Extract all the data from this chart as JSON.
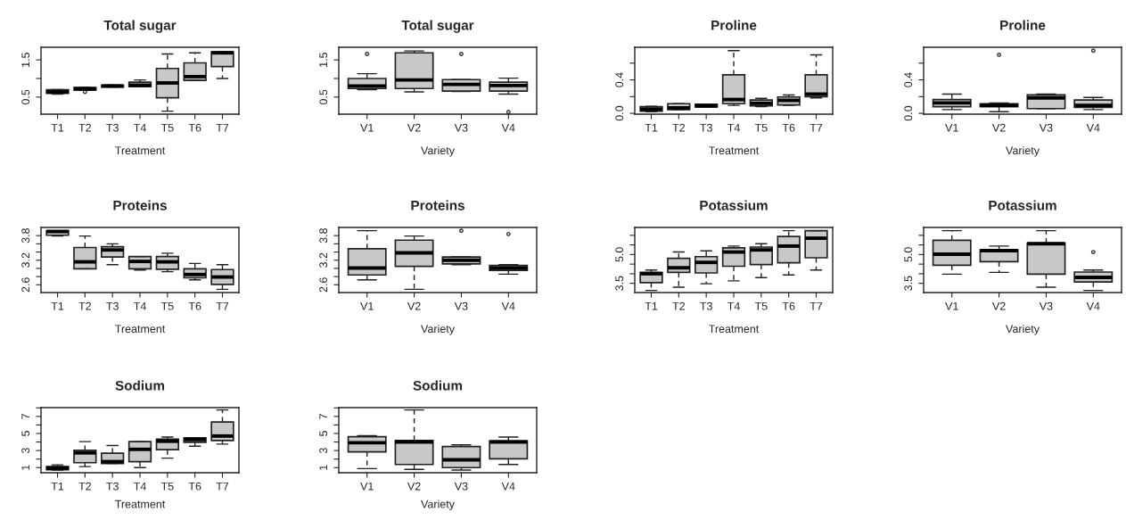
{
  "chart_data": [
    {
      "type": "box",
      "title": "Total sugar",
      "xlabel": "Treatment",
      "categories": [
        "T1",
        "T2",
        "T3",
        "T4",
        "T5",
        "T6",
        "T7"
      ],
      "ylim": [
        0.04,
        1.84
      ],
      "yticks": [
        0.5,
        {
          "value": 1.0,
          "label": null
        },
        1.5
      ],
      "boxes": [
        {
          "low": 0.58,
          "q1": 0.6,
          "median": 0.64,
          "q3": 0.7,
          "high": 0.7
        },
        {
          "low": 0.68,
          "q1": 0.69,
          "median": 0.72,
          "q3": 0.76,
          "high": 0.76,
          "outliers": [
            0.64
          ]
        },
        {
          "low": 0.77,
          "q1": 0.77,
          "median": 0.8,
          "q3": 0.82,
          "high": 0.82
        },
        {
          "low": 0.78,
          "q1": 0.78,
          "median": 0.82,
          "q3": 0.9,
          "high": 0.96
        },
        {
          "low": 0.12,
          "q1": 0.48,
          "median": 0.88,
          "q3": 1.27,
          "high": 1.66
        },
        {
          "low": 0.95,
          "q1": 0.95,
          "median": 1.05,
          "q3": 1.42,
          "high": 1.69
        },
        {
          "low": 1.0,
          "q1": 1.32,
          "median": 1.69,
          "q3": 1.72,
          "high": 1.73
        }
      ]
    },
    {
      "type": "box",
      "title": "Total sugar",
      "xlabel": "Variety",
      "categories": [
        "V1",
        "V2",
        "V3",
        "V4"
      ],
      "ylim": [
        0.04,
        1.84
      ],
      "yticks": [
        0.5,
        {
          "value": 1.0,
          "label": null
        },
        1.5
      ],
      "boxes": [
        {
          "low": 0.7,
          "q1": 0.73,
          "median": 0.8,
          "q3": 1.0,
          "high": 1.13,
          "outliers": [
            1.66
          ]
        },
        {
          "low": 0.64,
          "q1": 0.73,
          "median": 0.96,
          "q3": 1.69,
          "high": 1.74
        },
        {
          "low": 0.65,
          "q1": 0.66,
          "median": 0.84,
          "q3": 0.97,
          "high": 0.97,
          "outliers": [
            1.66
          ]
        },
        {
          "low": 0.58,
          "q1": 0.66,
          "median": 0.81,
          "q3": 0.9,
          "high": 1.01,
          "outliers": [
            0.1
          ]
        }
      ]
    },
    {
      "type": "box",
      "title": "Proline",
      "xlabel": "Treatment",
      "categories": [
        "T1",
        "T2",
        "T3",
        "T4",
        "T5",
        "T6",
        "T7"
      ],
      "ylim": [
        -0.01,
        0.79
      ],
      "yticks": [
        {
          "value": 0.0,
          "label": "0.0"
        },
        {
          "value": 0.2,
          "label": null
        },
        0.4,
        {
          "value": 0.6,
          "label": null
        }
      ],
      "boxes": [
        {
          "low": 0.02,
          "q1": 0.025,
          "median": 0.05,
          "q3": 0.08,
          "high": 0.085
        },
        {
          "low": 0.045,
          "q1": 0.045,
          "median": 0.065,
          "q3": 0.115,
          "high": 0.115
        },
        {
          "low": 0.075,
          "q1": 0.075,
          "median": 0.09,
          "q3": 0.11,
          "high": 0.11
        },
        {
          "low": 0.095,
          "q1": 0.115,
          "median": 0.165,
          "q3": 0.46,
          "high": 0.75
        },
        {
          "low": 0.08,
          "q1": 0.09,
          "median": 0.12,
          "q3": 0.16,
          "high": 0.18
        },
        {
          "low": 0.095,
          "q1": 0.1,
          "median": 0.155,
          "q3": 0.195,
          "high": 0.22
        },
        {
          "low": 0.185,
          "q1": 0.2,
          "median": 0.23,
          "q3": 0.46,
          "high": 0.7
        }
      ]
    },
    {
      "type": "box",
      "title": "Proline",
      "xlabel": "Variety",
      "categories": [
        "V1",
        "V2",
        "V3",
        "V4"
      ],
      "ylim": [
        -0.01,
        0.79
      ],
      "yticks": [
        {
          "value": 0.0,
          "label": "0.0"
        },
        {
          "value": 0.2,
          "label": null
        },
        0.4,
        {
          "value": 0.6,
          "label": null
        }
      ],
      "boxes": [
        {
          "low": 0.045,
          "q1": 0.08,
          "median": 0.125,
          "q3": 0.165,
          "high": 0.23
        },
        {
          "low": 0.02,
          "q1": 0.08,
          "median": 0.095,
          "q3": 0.115,
          "high": 0.125,
          "outliers": [
            0.7
          ]
        },
        {
          "low": 0.057,
          "q1": 0.057,
          "median": 0.185,
          "q3": 0.22,
          "high": 0.23
        },
        {
          "low": 0.045,
          "q1": 0.07,
          "median": 0.095,
          "q3": 0.16,
          "high": 0.19,
          "outliers": [
            0.75
          ]
        }
      ]
    },
    {
      "type": "box",
      "title": "Proteins",
      "xlabel": "Treatment",
      "categories": [
        "T1",
        "T2",
        "T3",
        "T4",
        "T5",
        "T6",
        "T7"
      ],
      "ylim": [
        2.41,
        4.0
      ],
      "yticks": [
        2.6,
        {
          "value": 2.8,
          "label": null
        },
        {
          "value": 3.0,
          "label": null
        },
        3.2,
        {
          "value": 3.4,
          "label": null
        },
        {
          "value": 3.6,
          "label": null
        },
        3.8
      ],
      "boxes": [
        {
          "low": 3.79,
          "q1": 3.81,
          "median": 3.9,
          "q3": 3.92,
          "high": 3.92
        },
        {
          "low": 2.99,
          "q1": 2.99,
          "median": 3.16,
          "q3": 3.51,
          "high": 3.79
        },
        {
          "low": 3.09,
          "q1": 3.28,
          "median": 3.45,
          "q3": 3.53,
          "high": 3.6
        },
        {
          "low": 2.96,
          "q1": 2.99,
          "median": 3.17,
          "q3": 3.29,
          "high": 3.29
        },
        {
          "low": 2.92,
          "q1": 2.98,
          "median": 3.16,
          "q3": 3.29,
          "high": 3.37
        },
        {
          "low": 2.72,
          "q1": 2.77,
          "median": 2.85,
          "q3": 2.99,
          "high": 3.12
        },
        {
          "low": 2.49,
          "q1": 2.61,
          "median": 2.79,
          "q3": 2.97,
          "high": 3.09
        }
      ]
    },
    {
      "type": "box",
      "title": "Proteins",
      "xlabel": "Variety",
      "categories": [
        "V1",
        "V2",
        "V3",
        "V4"
      ],
      "ylim": [
        2.41,
        4.0
      ],
      "yticks": [
        2.6,
        {
          "value": 2.8,
          "label": null
        },
        {
          "value": 3.0,
          "label": null
        },
        3.2,
        {
          "value": 3.4,
          "label": null
        },
        {
          "value": 3.6,
          "label": null
        },
        3.8
      ],
      "boxes": [
        {
          "low": 2.72,
          "q1": 2.84,
          "median": 3.01,
          "q3": 3.48,
          "high": 3.92
        },
        {
          "low": 2.49,
          "q1": 3.05,
          "median": 3.38,
          "q3": 3.69,
          "high": 3.79
        },
        {
          "low": 3.09,
          "q1": 3.11,
          "median": 3.2,
          "q3": 3.28,
          "high": 3.28,
          "outliers": [
            3.92
          ]
        },
        {
          "low": 2.86,
          "q1": 2.95,
          "median": 3.01,
          "q3": 3.07,
          "high": 3.09,
          "outliers": [
            3.84
          ]
        }
      ]
    },
    {
      "type": "box",
      "title": "Potassium",
      "xlabel": "Treatment",
      "categories": [
        "T1",
        "T2",
        "T3",
        "T4",
        "T5",
        "T6",
        "T7"
      ],
      "ylim": [
        3.02,
        6.41
      ],
      "yticks": [
        3.5,
        {
          "value": 4.0,
          "label": null
        },
        {
          "value": 4.5,
          "label": null
        },
        {
          "value": 5.0,
          "label": "5.0"
        },
        {
          "value": 5.5,
          "label": null
        },
        {
          "value": 6.0,
          "label": null
        }
      ],
      "boxes": [
        {
          "low": 3.13,
          "q1": 3.54,
          "median": 4.0,
          "q3": 4.07,
          "high": 4.19
        },
        {
          "low": 3.3,
          "q1": 4.07,
          "median": 4.31,
          "q3": 4.8,
          "high": 5.13
        },
        {
          "low": 3.48,
          "q1": 4.04,
          "median": 4.59,
          "q3": 4.89,
          "high": 5.19
        },
        {
          "low": 3.63,
          "q1": 4.39,
          "median": 5.13,
          "q3": 5.35,
          "high": 5.44
        },
        {
          "low": 3.8,
          "q1": 4.48,
          "median": 5.24,
          "q3": 5.39,
          "high": 5.56
        },
        {
          "low": 3.94,
          "q1": 4.57,
          "median": 5.44,
          "q3": 5.94,
          "high": 6.24
        },
        {
          "low": 4.19,
          "q1": 4.83,
          "median": 5.85,
          "q3": 6.24,
          "high": 6.24
        }
      ]
    },
    {
      "type": "box",
      "title": "Potassium",
      "xlabel": "Variety",
      "categories": [
        "V1",
        "V2",
        "V3",
        "V4"
      ],
      "ylim": [
        3.02,
        6.41
      ],
      "yticks": [
        3.5,
        {
          "value": 4.0,
          "label": null
        },
        {
          "value": 4.5,
          "label": null
        },
        {
          "value": 5.0,
          "label": "5.0"
        },
        {
          "value": 5.5,
          "label": null
        },
        {
          "value": 6.0,
          "label": null
        }
      ],
      "boxes": [
        {
          "low": 3.98,
          "q1": 4.44,
          "median": 5.02,
          "q3": 5.74,
          "high": 6.24
        },
        {
          "low": 4.07,
          "q1": 4.63,
          "median": 5.2,
          "q3": 5.24,
          "high": 5.44
        },
        {
          "low": 3.3,
          "q1": 3.98,
          "median": 5.56,
          "q3": 5.59,
          "high": 6.24
        },
        {
          "low": 3.13,
          "q1": 3.57,
          "median": 3.81,
          "q3": 4.09,
          "high": 4.19,
          "outliers": [
            5.13
          ]
        }
      ]
    },
    {
      "type": "box",
      "title": "Sodium",
      "xlabel": "Treatment",
      "categories": [
        "T1",
        "T2",
        "T3",
        "T4",
        "T5",
        "T6",
        "T7"
      ],
      "ylim": [
        0.4,
        8.03
      ],
      "yticks": [
        1,
        {
          "value": 2,
          "label": null
        },
        3,
        {
          "value": 4,
          "label": null
        },
        5,
        {
          "value": 6,
          "label": null
        },
        7,
        {
          "value": 8,
          "label": null
        }
      ],
      "boxes": [
        {
          "low": 0.71,
          "q1": 0.75,
          "median": 0.96,
          "q3": 1.12,
          "high": 1.33
        },
        {
          "low": 1.12,
          "q1": 1.58,
          "median": 2.73,
          "q3": 3.02,
          "high": 4.05
        },
        {
          "low": 1.49,
          "q1": 1.49,
          "median": 1.7,
          "q3": 2.69,
          "high": 3.59
        },
        {
          "low": 1.0,
          "q1": 1.7,
          "median": 3.14,
          "q3": 4.05,
          "high": 4.05
        },
        {
          "low": 2.11,
          "q1": 3.1,
          "median": 4.09,
          "q3": 4.33,
          "high": 4.58
        },
        {
          "low": 3.51,
          "q1": 3.96,
          "median": 4.29,
          "q3": 4.5,
          "high": 4.5
        },
        {
          "low": 3.76,
          "q1": 4.17,
          "median": 4.7,
          "q3": 6.35,
          "high": 7.75
        }
      ]
    },
    {
      "type": "box",
      "title": "Sodium",
      "xlabel": "Variety",
      "categories": [
        "V1",
        "V2",
        "V3",
        "V4"
      ],
      "ylim": [
        0.4,
        8.03
      ],
      "yticks": [
        1,
        {
          "value": 2,
          "label": null
        },
        3,
        {
          "value": 4,
          "label": null
        },
        5,
        {
          "value": 6,
          "label": null
        },
        7,
        {
          "value": 8,
          "label": null
        }
      ],
      "boxes": [
        {
          "low": 0.88,
          "q1": 2.85,
          "median": 3.92,
          "q3": 4.62,
          "high": 4.74
        },
        {
          "low": 0.79,
          "q1": 1.37,
          "median": 4.0,
          "q3": 4.17,
          "high": 7.75
        },
        {
          "low": 0.71,
          "q1": 1.0,
          "median": 1.91,
          "q3": 3.47,
          "high": 3.67
        },
        {
          "low": 1.37,
          "q1": 2.03,
          "median": 4.0,
          "q3": 4.13,
          "high": 4.58
        }
      ]
    }
  ]
}
